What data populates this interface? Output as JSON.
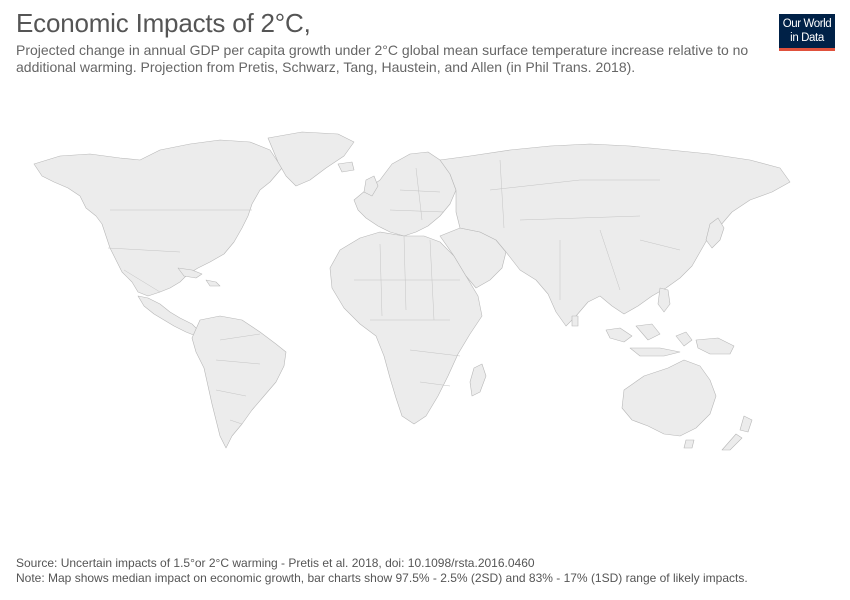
{
  "title": "Economic Impacts of 2°C,",
  "subtitle": "Projected change in annual GDP per capita growth under 2°C global mean surface temperature increase relative to no additional warming. Projection from Pretis, Schwarz, Tang, Haustein, and Allen (in Phil Trans. 2018).",
  "logo": {
    "line1": "Our World",
    "line2": "in Data",
    "bg_color": "#002147",
    "accent_color": "#e0513c"
  },
  "map": {
    "land_color": "#ececec",
    "border_color": "#b8b8b8"
  },
  "footer": {
    "source": "Source: Uncertain impacts of 1.5°or 2°C warming - Pretis et al. 2018, doi: 10.1098/rsta.2016.0460",
    "note": "Note: Map shows median impact on economic growth, bar charts show 97.5% - 2.5% (2SD) and 83% - 17% (1SD) range of likely impacts."
  }
}
